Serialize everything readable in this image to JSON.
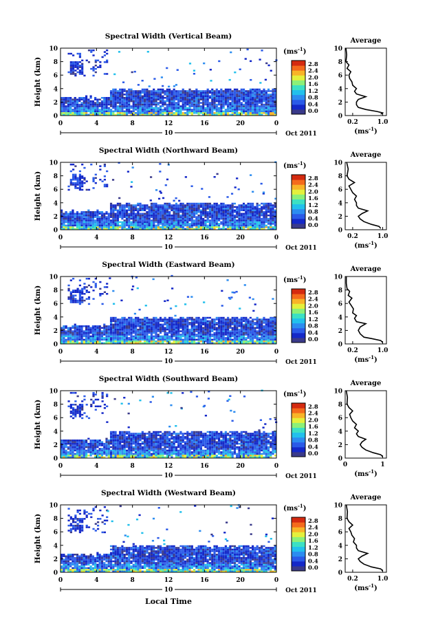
{
  "figure": {
    "xaxis_title": "Local Time",
    "date_label": "Oct 2011",
    "day_label": "10",
    "avg_title": "Average",
    "unit_label": "(ms",
    "unit_sup": "-1",
    "unit_close": ")"
  },
  "colorbar": {
    "ticks": [
      "2.8",
      "2.4",
      "2.0",
      "1.6",
      "1.2",
      "0.8",
      "0.4",
      "0.0"
    ],
    "colors": [
      "#3a3a8a",
      "#1428c8",
      "#2a5ae8",
      "#2c8cf0",
      "#22c0ec",
      "#3ce0c4",
      "#8cf078",
      "#e4f03c",
      "#f8b428",
      "#f46a1c",
      "#d42a10"
    ]
  },
  "chart_data": [
    {
      "type": "heatmap",
      "title": "Spectral Width (Vertical Beam)",
      "ylabel": "Height (km)",
      "xlabel": "Local Time",
      "xticks": [
        "0",
        "4",
        "8",
        "12",
        "16",
        "20",
        "0"
      ],
      "xlim": [
        0,
        24
      ],
      "yticks": [
        "0",
        "2",
        "4",
        "6",
        "8",
        "10"
      ],
      "ylim": [
        0,
        10
      ],
      "zlabel": "ms-1",
      "zlim": [
        0,
        2.8
      ],
      "profile": {
        "title": "Average",
        "xlabel": "ms-1",
        "xticks": [
          "0.2",
          "1.0"
        ],
        "xlim": [
          0,
          1.1
        ],
        "yticks": [
          "0",
          "2",
          "4",
          "6",
          "8",
          "10"
        ],
        "ylim": [
          0,
          10
        ],
        "points": [
          [
            0.95,
            0.2
          ],
          [
            1.0,
            0.4
          ],
          [
            0.85,
            0.6
          ],
          [
            0.55,
            0.9
          ],
          [
            0.35,
            1.2
          ],
          [
            0.3,
            1.6
          ],
          [
            0.3,
            2.0
          ],
          [
            0.35,
            2.4
          ],
          [
            0.55,
            2.8
          ],
          [
            0.3,
            3.2
          ],
          [
            0.25,
            3.6
          ],
          [
            0.3,
            4.0
          ],
          [
            0.2,
            4.5
          ],
          [
            0.18,
            5.0
          ],
          [
            0.12,
            5.5
          ],
          [
            0.1,
            6.0
          ],
          [
            0.15,
            6.5
          ],
          [
            0.05,
            7.0
          ],
          [
            0.1,
            7.5
          ],
          [
            0.02,
            8.0
          ],
          [
            0.04,
            9.0
          ],
          [
            0.02,
            10.0
          ]
        ]
      }
    },
    {
      "type": "heatmap",
      "title": "Spectral Width (Northward Beam)",
      "ylabel": "Height (km)",
      "xlabel": "Local Time",
      "xticks": [
        "0",
        "4",
        "8",
        "12",
        "16",
        "20",
        "0"
      ],
      "xlim": [
        0,
        24
      ],
      "yticks": [
        "0",
        "2",
        "4",
        "6",
        "8",
        "10"
      ],
      "ylim": [
        0,
        10
      ],
      "zlabel": "ms-1",
      "zlim": [
        0,
        2.8
      ],
      "profile": {
        "title": "Average",
        "xlabel": "ms-1",
        "xticks": [
          "0.2",
          "1.0"
        ],
        "xlim": [
          0,
          1.1
        ],
        "yticks": [
          "0",
          "2",
          "4",
          "6",
          "8",
          "10"
        ],
        "ylim": [
          0,
          10
        ],
        "points": [
          [
            0.95,
            0.2
          ],
          [
            0.9,
            0.5
          ],
          [
            0.7,
            0.8
          ],
          [
            0.5,
            1.2
          ],
          [
            0.4,
            1.6
          ],
          [
            0.35,
            2.0
          ],
          [
            0.45,
            2.4
          ],
          [
            0.6,
            2.8
          ],
          [
            0.35,
            3.2
          ],
          [
            0.3,
            3.6
          ],
          [
            0.3,
            4.0
          ],
          [
            0.25,
            4.5
          ],
          [
            0.3,
            5.0
          ],
          [
            0.2,
            5.5
          ],
          [
            0.15,
            6.0
          ],
          [
            0.1,
            6.5
          ],
          [
            0.25,
            7.0
          ],
          [
            0.1,
            7.5
          ],
          [
            0.05,
            8.0
          ],
          [
            0.08,
            9.0
          ],
          [
            0.04,
            10.0
          ]
        ]
      }
    },
    {
      "type": "heatmap",
      "title": "Spectral Width (Eastward Beam)",
      "ylabel": "Height (km)",
      "xlabel": "Local Time",
      "xticks": [
        "0",
        "4",
        "8",
        "12",
        "16",
        "20",
        "0"
      ],
      "xlim": [
        0,
        24
      ],
      "yticks": [
        "0",
        "2",
        "4",
        "6",
        "8",
        "10"
      ],
      "ylim": [
        0,
        10
      ],
      "zlabel": "ms-1",
      "zlim": [
        0,
        2.8
      ],
      "profile": {
        "title": "Average",
        "xlabel": "ms-1",
        "xticks": [
          "0.2",
          "1.0"
        ],
        "xlim": [
          0,
          1.1
        ],
        "yticks": [
          "0",
          "2",
          "4",
          "6",
          "8",
          "10"
        ],
        "ylim": [
          0,
          10
        ],
        "points": [
          [
            1.0,
            0.2
          ],
          [
            0.95,
            0.5
          ],
          [
            0.7,
            0.8
          ],
          [
            0.5,
            1.0
          ],
          [
            0.4,
            1.5
          ],
          [
            0.35,
            2.0
          ],
          [
            0.4,
            2.5
          ],
          [
            0.55,
            3.0
          ],
          [
            0.3,
            3.3
          ],
          [
            0.25,
            3.8
          ],
          [
            0.3,
            4.2
          ],
          [
            0.2,
            4.6
          ],
          [
            0.22,
            5.2
          ],
          [
            0.15,
            5.8
          ],
          [
            0.1,
            6.2
          ],
          [
            0.18,
            6.8
          ],
          [
            0.08,
            7.2
          ],
          [
            0.12,
            7.8
          ],
          [
            0.05,
            8.2
          ],
          [
            0.03,
            9.0
          ],
          [
            0.03,
            10.0
          ]
        ]
      }
    },
    {
      "type": "heatmap",
      "title": "Spectral Width (Southward Beam)",
      "ylabel": "Height (km)",
      "xlabel": "Local Time",
      "xticks": [
        "0",
        "4",
        "8",
        "12",
        "16",
        "20",
        "0"
      ],
      "xlim": [
        0,
        24
      ],
      "yticks": [
        "0",
        "2",
        "4",
        "6",
        "8",
        "10"
      ],
      "ylim": [
        0,
        10
      ],
      "zlabel": "ms-1",
      "zlim": [
        0,
        2.8
      ],
      "profile": {
        "title": "Average",
        "xlabel": "ms-1",
        "xticks": [
          "0",
          "1"
        ],
        "xlim": [
          0,
          1.1
        ],
        "yticks": [
          "0",
          "2",
          "4",
          "6",
          "8",
          "10"
        ],
        "ylim": [
          0,
          10
        ],
        "points": [
          [
            1.0,
            0.2
          ],
          [
            0.95,
            0.5
          ],
          [
            0.75,
            0.8
          ],
          [
            0.55,
            1.2
          ],
          [
            0.45,
            1.6
          ],
          [
            0.4,
            2.0
          ],
          [
            0.45,
            2.4
          ],
          [
            0.55,
            2.8
          ],
          [
            0.35,
            3.2
          ],
          [
            0.3,
            3.6
          ],
          [
            0.35,
            4.0
          ],
          [
            0.25,
            4.5
          ],
          [
            0.3,
            5.0
          ],
          [
            0.2,
            5.5
          ],
          [
            0.15,
            6.0
          ],
          [
            0.12,
            6.5
          ],
          [
            0.2,
            7.0
          ],
          [
            0.1,
            7.5
          ],
          [
            0.05,
            8.0
          ],
          [
            0.06,
            9.0
          ],
          [
            0.03,
            10.0
          ]
        ]
      }
    },
    {
      "type": "heatmap",
      "title": "Spectral Width (Westward Beam)",
      "ylabel": "Height (km)",
      "xlabel": "Local Time",
      "xticks": [
        "0",
        "4",
        "8",
        "12",
        "16",
        "20",
        "0"
      ],
      "xlim": [
        0,
        24
      ],
      "yticks": [
        "0",
        "2",
        "4",
        "6",
        "8",
        "10"
      ],
      "ylim": [
        0,
        10
      ],
      "zlabel": "ms-1",
      "zlim": [
        0,
        2.8
      ],
      "profile": {
        "title": "Average",
        "xlabel": "ms-1",
        "xticks": [
          "0.2",
          "1.0"
        ],
        "xlim": [
          0,
          1.1
        ],
        "yticks": [
          "0",
          "2",
          "4",
          "6",
          "8",
          "10"
        ],
        "ylim": [
          0,
          10
        ],
        "points": [
          [
            1.0,
            0.2
          ],
          [
            0.95,
            0.5
          ],
          [
            0.7,
            0.8
          ],
          [
            0.5,
            1.2
          ],
          [
            0.4,
            1.6
          ],
          [
            0.35,
            2.0
          ],
          [
            0.45,
            2.4
          ],
          [
            0.6,
            2.8
          ],
          [
            0.35,
            3.2
          ],
          [
            0.3,
            3.6
          ],
          [
            0.3,
            4.0
          ],
          [
            0.22,
            4.5
          ],
          [
            0.25,
            5.0
          ],
          [
            0.18,
            5.5
          ],
          [
            0.15,
            6.0
          ],
          [
            0.1,
            6.5
          ],
          [
            0.2,
            7.0
          ],
          [
            0.1,
            7.5
          ],
          [
            0.05,
            8.0
          ],
          [
            0.06,
            9.0
          ],
          [
            0.03,
            10.0
          ]
        ]
      }
    }
  ]
}
